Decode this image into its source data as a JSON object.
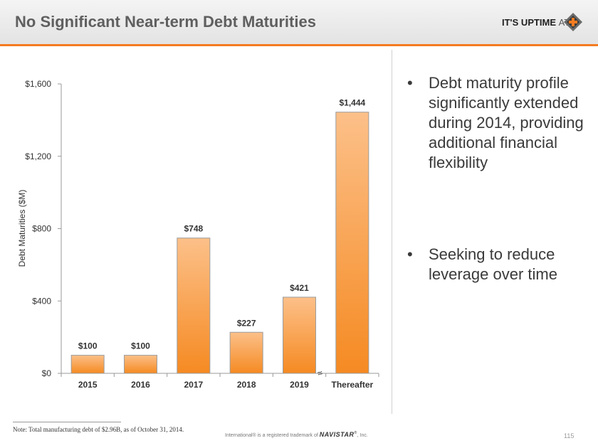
{
  "header": {
    "title": "No Significant Near-term Debt Maturities",
    "logo_text": "IT'S UPTIME",
    "logo_at": "AT"
  },
  "chart_data": {
    "type": "bar",
    "title": "",
    "xlabel": "",
    "ylabel": "Debt Maturities ($M)",
    "categories": [
      "2015",
      "2016",
      "2017",
      "2018",
      "2019",
      "Thereafter"
    ],
    "values": [
      100,
      100,
      748,
      227,
      421,
      1444
    ],
    "value_labels": [
      "$100",
      "$100",
      "$748",
      "$227",
      "$421",
      "$1,444"
    ],
    "yticks": [
      0,
      400,
      800,
      1200,
      1600
    ],
    "ytick_labels": [
      "$0",
      "$400",
      "$800",
      "$1,200",
      "$1,600"
    ],
    "ylim": [
      0,
      1600
    ],
    "axis_break_marker": "≈",
    "grid": false,
    "legend": "none",
    "colors": {
      "bar_top": "#fcc089",
      "bar_bottom": "#f58a22",
      "bar_stroke": "#9c9c9c",
      "axis": "#9a9a9a",
      "text": "#333333"
    }
  },
  "bullets": [
    {
      "marker": "•",
      "text": "Debt maturity profile significantly extended during 2014, providing additional financial flexibility"
    },
    {
      "marker": "•",
      "text": "Seeking to reduce leverage over time"
    }
  ],
  "footer": {
    "note": "Note:   Total manufacturing debt of $2.96B, as of October 31, 2014.",
    "trademark_prefix": "International® is a registered trademark of ",
    "trademark_brand": "NAVISTAR",
    "trademark_reg": "®",
    "trademark_suffix": ", Inc.",
    "page_number": "115"
  },
  "colors": {
    "accent": "#f47b20",
    "title": "#5f5f5f"
  }
}
